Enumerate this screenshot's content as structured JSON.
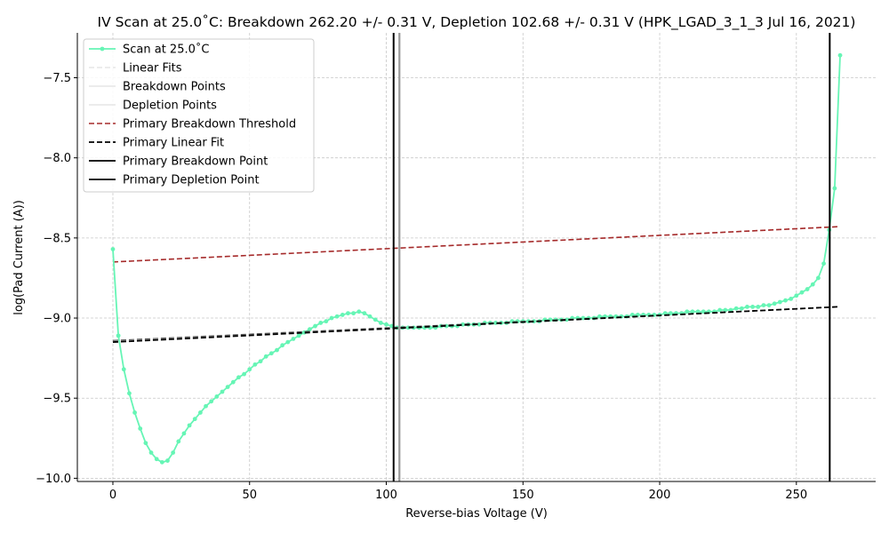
{
  "chart_data": {
    "type": "line",
    "title": "IV Scan at 25.0$^\\circ$C: Breakdown 262.20 +/- 0.31 V, Depletion 102.68 +/- 0.31 V (HPK_LGAD_3_1_3 Jul 16, 2021)",
    "title_display": "IV Scan at 25.0˚C: Breakdown 262.20 +/- 0.31 V, Depletion 102.68 +/- 0.31 V (HPK_LGAD_3_1_3 Jul 16, 2021)",
    "xlabel": "Reverse-bias Voltage (V)",
    "ylabel": "log(Pad Current (A))",
    "xlim": [
      -13,
      279
    ],
    "ylim": [
      -10.02,
      -7.22
    ],
    "xticks": [
      0,
      50,
      100,
      150,
      200,
      250
    ],
    "yticks": [
      -10.0,
      -9.5,
      -9.0,
      -8.5,
      -8.0,
      -7.5
    ],
    "xtick_labels": [
      "0",
      "50",
      "100",
      "150",
      "200",
      "250"
    ],
    "ytick_labels": [
      "−10.0",
      "−9.5",
      "−9.0",
      "−8.5",
      "−8.0",
      "−7.5"
    ],
    "grid": true,
    "legend_position": "top-left",
    "colors": {
      "scan": "#66f5b5",
      "threshold": "#a52a2a",
      "linear_fit": "#000000",
      "breakdown_point": "#000000",
      "depletion_point": "#000000",
      "secondary_lines": "#999999",
      "grid": "#c8c8c8"
    },
    "legend": [
      {
        "label": "Scan at 25.0˚C",
        "style": "scan"
      },
      {
        "label": "Linear Fits",
        "style": "faint-dashed"
      },
      {
        "label": "Breakdown Points",
        "style": "faint-solid"
      },
      {
        "label": "Depletion Points",
        "style": "faint-solid"
      },
      {
        "label": "Primary Breakdown Threshold",
        "style": "threshold"
      },
      {
        "label": "Primary Linear Fit",
        "style": "fit"
      },
      {
        "label": "Primary Breakdown Point",
        "style": "solid-black"
      },
      {
        "label": "Primary Depletion Point",
        "style": "solid-black"
      }
    ],
    "series": [
      {
        "name": "Scan at 25.0˚C",
        "x": [
          0,
          2,
          4,
          6,
          8,
          10,
          12,
          14,
          16,
          18,
          20,
          22,
          24,
          26,
          28,
          30,
          32,
          34,
          36,
          38,
          40,
          42,
          44,
          46,
          48,
          50,
          52,
          54,
          56,
          58,
          60,
          62,
          64,
          66,
          68,
          70,
          72,
          74,
          76,
          78,
          80,
          82,
          84,
          86,
          88,
          90,
          92,
          94,
          96,
          98,
          100,
          102,
          104,
          106,
          108,
          110,
          112,
          114,
          116,
          118,
          120,
          122,
          124,
          126,
          128,
          130,
          132,
          134,
          136,
          138,
          140,
          142,
          144,
          146,
          148,
          150,
          152,
          154,
          156,
          158,
          160,
          162,
          164,
          166,
          168,
          170,
          172,
          174,
          176,
          178,
          180,
          182,
          184,
          186,
          188,
          190,
          192,
          194,
          196,
          198,
          200,
          202,
          204,
          206,
          208,
          210,
          212,
          214,
          216,
          218,
          220,
          222,
          224,
          226,
          228,
          230,
          232,
          234,
          236,
          238,
          240,
          242,
          244,
          246,
          248,
          250,
          252,
          254,
          256,
          258,
          260,
          262,
          264,
          266
        ],
        "y": [
          -8.57,
          -9.11,
          -9.32,
          -9.47,
          -9.59,
          -9.69,
          -9.78,
          -9.84,
          -9.88,
          -9.9,
          -9.89,
          -9.84,
          -9.77,
          -9.72,
          -9.67,
          -9.63,
          -9.59,
          -9.55,
          -9.52,
          -9.49,
          -9.46,
          -9.43,
          -9.4,
          -9.37,
          -9.35,
          -9.32,
          -9.29,
          -9.27,
          -9.24,
          -9.22,
          -9.2,
          -9.17,
          -9.15,
          -9.13,
          -9.11,
          -9.09,
          -9.07,
          -9.05,
          -9.03,
          -9.02,
          -9.0,
          -8.99,
          -8.98,
          -8.97,
          -8.97,
          -8.96,
          -8.97,
          -8.99,
          -9.01,
          -9.03,
          -9.04,
          -9.05,
          -9.06,
          -9.06,
          -9.06,
          -9.06,
          -9.06,
          -9.06,
          -9.06,
          -9.06,
          -9.05,
          -9.05,
          -9.05,
          -9.05,
          -9.04,
          -9.04,
          -9.04,
          -9.04,
          -9.03,
          -9.03,
          -9.03,
          -9.03,
          -9.03,
          -9.02,
          -9.02,
          -9.02,
          -9.02,
          -9.02,
          -9.02,
          -9.01,
          -9.01,
          -9.01,
          -9.01,
          -9.01,
          -9.0,
          -9.0,
          -9.0,
          -9.0,
          -9.0,
          -8.99,
          -8.99,
          -8.99,
          -8.99,
          -8.99,
          -8.99,
          -8.98,
          -8.98,
          -8.98,
          -8.98,
          -8.98,
          -8.98,
          -8.97,
          -8.97,
          -8.97,
          -8.97,
          -8.96,
          -8.96,
          -8.96,
          -8.96,
          -8.96,
          -8.96,
          -8.95,
          -8.95,
          -8.95,
          -8.94,
          -8.94,
          -8.93,
          -8.93,
          -8.93,
          -8.92,
          -8.92,
          -8.91,
          -8.9,
          -8.89,
          -8.88,
          -8.86,
          -8.84,
          -8.82,
          -8.79,
          -8.75,
          -8.66,
          -8.45,
          -8.19,
          -7.36
        ]
      }
    ],
    "threshold_line": {
      "x": [
        0,
        265
      ],
      "y": [
        -8.65,
        -8.43
      ]
    },
    "linear_fit": {
      "x": [
        0,
        265
      ],
      "y": [
        -9.15,
        -8.93
      ]
    },
    "linear_fit_shadow": {
      "x": [
        0,
        265
      ],
      "y": [
        -9.14,
        -8.93
      ]
    },
    "breakdown_point": {
      "value": 262.2
    },
    "depletion_point": {
      "value": 102.68
    },
    "secondary_depletion_point": {
      "value": 104.8
    }
  }
}
